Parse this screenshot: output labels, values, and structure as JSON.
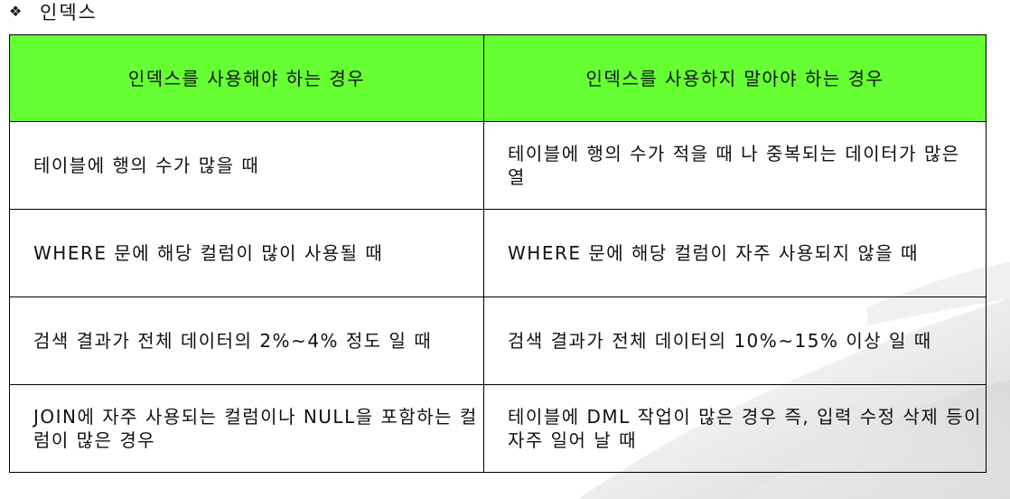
{
  "heading": {
    "bullet_icon": "diamond-bullet-icon",
    "bullet_glyph": "❖",
    "title": "인덱스"
  },
  "table": {
    "header_color": "#66ff33",
    "headers": [
      "인덱스를 사용해야 하는 경우",
      "인덱스를 사용하지 말아야 하는 경우"
    ],
    "rows": [
      [
        "테이블에 행의 수가 많을 때",
        "테이블에 행의 수가 적을 때 나 중복되는 데이터가 많은 열"
      ],
      [
        "WHERE 문에 해당 컬럼이 많이 사용될 때",
        "WHERE 문에 해당 컬럼이 자주 사용되지 않을 때"
      ],
      [
        "검색 결과가 전체 데이터의 2%~4% 정도 일 때",
        "검색 결과가 전체 데이터의 10%~15% 이상 일 때"
      ],
      [
        "JOIN에 자주 사용되는 컬럼이나 NULL을 포함하는 컬럼이 많은 경우",
        "테이블에 DML 작업이 많은 경우 즉, 입력 수정 삭제 등이 자주 일어 날 때"
      ]
    ]
  }
}
